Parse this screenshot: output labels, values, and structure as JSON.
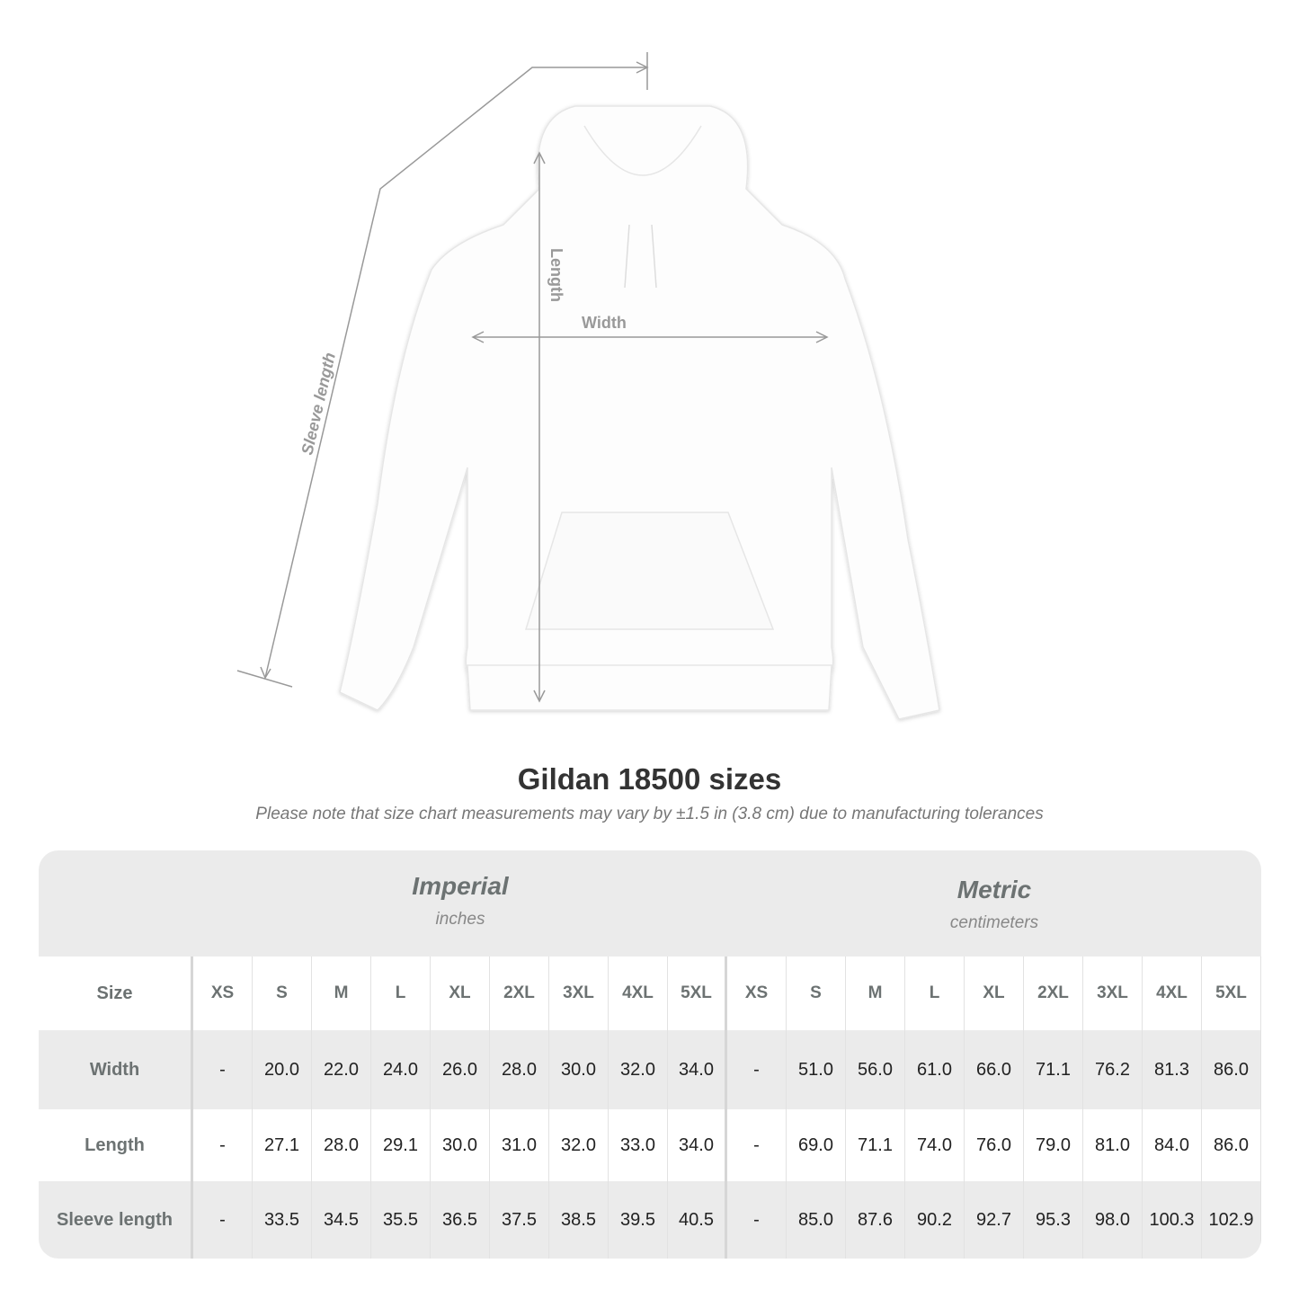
{
  "diagram": {
    "labels": {
      "length": "Length",
      "width": "Width",
      "sleeve": "Sleeve length"
    },
    "garment_color": "#ffffff",
    "line_color": "#999999"
  },
  "title": "Gildan 18500 sizes",
  "note": "Please note that size chart measurements may vary by ±1.5 in (3.8 cm) due to manufacturing tolerances",
  "table": {
    "imperial": {
      "name": "Imperial",
      "unit": "inches"
    },
    "metric": {
      "name": "Metric",
      "unit": "centimeters"
    },
    "size_label": "Size",
    "sizes": [
      "XS",
      "S",
      "M",
      "L",
      "XL",
      "2XL",
      "3XL",
      "4XL",
      "5XL"
    ],
    "rows": [
      {
        "label": "Width",
        "imperial": [
          "-",
          "20.0",
          "22.0",
          "24.0",
          "26.0",
          "28.0",
          "30.0",
          "32.0",
          "34.0"
        ],
        "metric": [
          "-",
          "51.0",
          "56.0",
          "61.0",
          "66.0",
          "71.1",
          "76.2",
          "81.3",
          "86.0"
        ]
      },
      {
        "label": "Length",
        "imperial": [
          "-",
          "27.1",
          "28.0",
          "29.1",
          "30.0",
          "31.0",
          "32.0",
          "33.0",
          "34.0"
        ],
        "metric": [
          "-",
          "69.0",
          "71.1",
          "74.0",
          "76.0",
          "79.0",
          "81.0",
          "84.0",
          "86.0"
        ]
      },
      {
        "label": "Sleeve length",
        "imperial": [
          "-",
          "33.5",
          "34.5",
          "35.5",
          "36.5",
          "37.5",
          "38.5",
          "39.5",
          "40.5"
        ],
        "metric": [
          "-",
          "85.0",
          "87.6",
          "90.2",
          "92.7",
          "95.3",
          "98.0",
          "100.3",
          "102.9"
        ]
      }
    ]
  }
}
